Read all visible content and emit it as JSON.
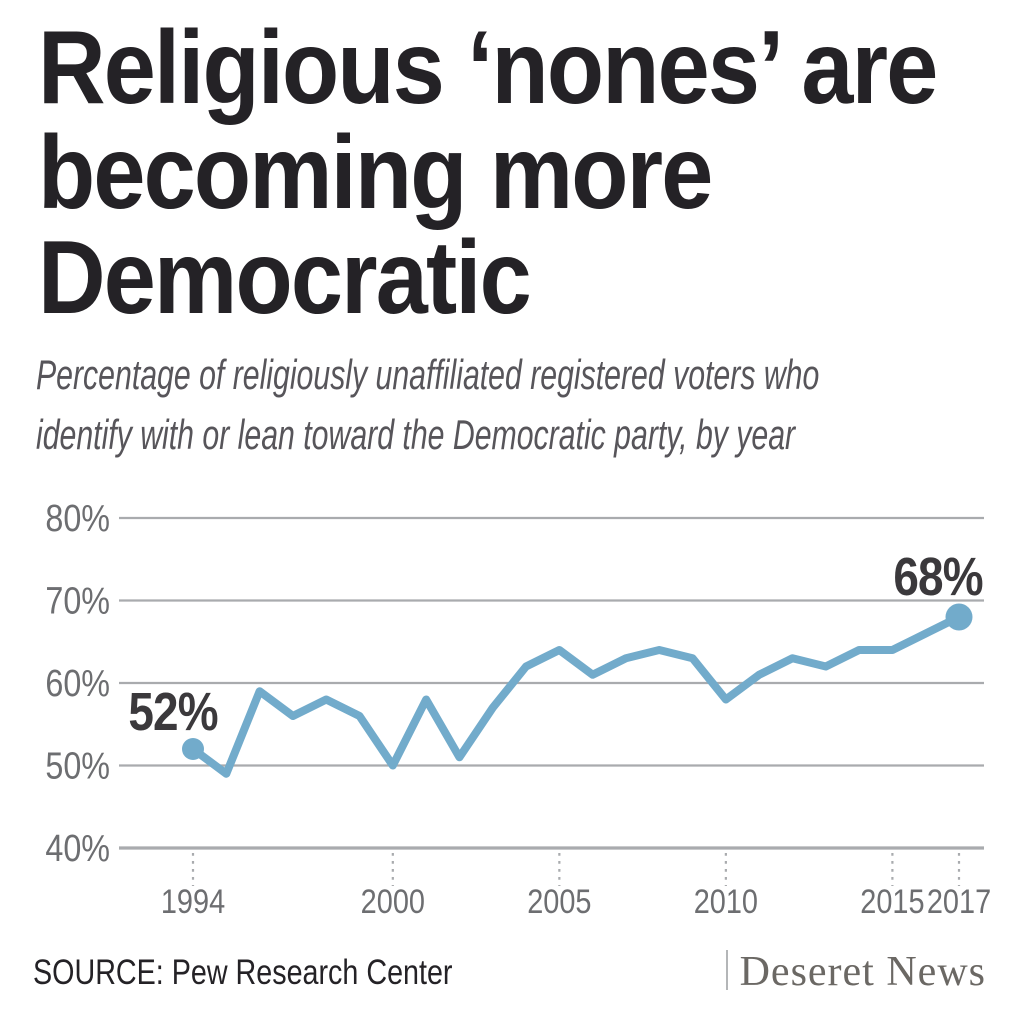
{
  "header": {
    "title_lines": [
      "Religious ‘nones’ are",
      "becoming more",
      "Democratic"
    ],
    "subtitle_lines": [
      "Percentage of religiously unaffiliated registered voters who",
      "identify with or lean toward the Democratic party, by year"
    ]
  },
  "chart_data": {
    "type": "line",
    "title": "Religious ‘nones’ are becoming more Democratic",
    "subtitle": "Percentage of religiously unaffiliated registered voters who identify with or lean toward the Democratic party, by year",
    "x": [
      1994,
      1995,
      1996,
      1997,
      1998,
      1999,
      2000,
      2001,
      2002,
      2003,
      2004,
      2005,
      2006,
      2007,
      2008,
      2009,
      2010,
      2011,
      2012,
      2013,
      2014,
      2015,
      2016,
      2017
    ],
    "series": [
      {
        "name": "Identify with or lean toward the Democratic party",
        "values": [
          52,
          49,
          59,
          56,
          58,
          56,
          50,
          58,
          51,
          57,
          62,
          64,
          61,
          63,
          64,
          63,
          58,
          61,
          63,
          62,
          64,
          64,
          66,
          68
        ]
      }
    ],
    "xlim": [
      1994,
      2017
    ],
    "ylim": [
      40,
      80
    ],
    "y_ticks": [
      40,
      50,
      60,
      70,
      80
    ],
    "y_tick_labels": [
      "40%",
      "50%",
      "60%",
      "70%",
      "80%"
    ],
    "x_tick_years": [
      1994,
      2000,
      2005,
      2010,
      2015,
      2017
    ],
    "x_tick_labels": [
      "1994",
      "2000",
      "2005",
      "2010",
      "2015",
      "2017"
    ],
    "grid": "horizontal",
    "legend": "none",
    "annotations": [
      {
        "label": "52%",
        "year": 1994,
        "value": 52
      },
      {
        "label": "68%",
        "year": 2017,
        "value": 68
      }
    ],
    "endpoint_markers": [
      {
        "year": 1994,
        "value": 52,
        "radius": 11
      },
      {
        "year": 2017,
        "value": 68,
        "radius": 13.5
      }
    ],
    "line_color": "#72abcb",
    "grid_color": "#a9abae",
    "axis_label_color": "#6d6e71",
    "annotation_color": "#3b393c"
  },
  "footer": {
    "source": "SOURCE: Pew Research Center",
    "brand": "Deseret News"
  }
}
